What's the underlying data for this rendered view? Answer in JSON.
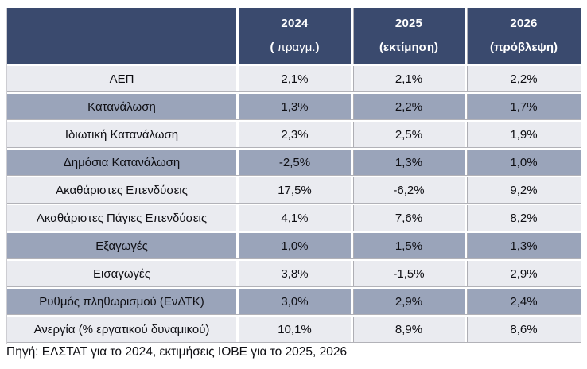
{
  "table": {
    "header": {
      "cols": [
        {
          "year": "2024",
          "sub_open": "( ",
          "sub_word": "πραγμ.",
          "sub_close": ")"
        },
        {
          "year": "2025",
          "sublabel": "(εκτίμηση)"
        },
        {
          "year": "2026",
          "sublabel": "(πρόβλεψη)"
        }
      ]
    },
    "rows": [
      {
        "label": "ΑΕΠ",
        "values": [
          "2,1%",
          "2,1%",
          "2,2%"
        ],
        "shade": "light"
      },
      {
        "label": "Κατανάλωση",
        "values": [
          "1,3%",
          "2,2%",
          "1,7%"
        ],
        "shade": "dark"
      },
      {
        "label": "Ιδιωτική Κατανάλωση",
        "values": [
          "2,3%",
          "2,5%",
          "1,9%"
        ],
        "shade": "light"
      },
      {
        "label": "Δημόσια Κατανάλωση",
        "values": [
          "-2,5%",
          "1,3%",
          "1,0%"
        ],
        "shade": "dark"
      },
      {
        "label": "Ακαθάριστες Επενδύσεις",
        "values": [
          "17,5%",
          "-6,2%",
          "9,2%"
        ],
        "shade": "light"
      },
      {
        "label": "Ακαθάριστες Πάγιες Επενδύσεις",
        "values": [
          "4,1%",
          "7,6%",
          "8,2%"
        ],
        "shade": "light"
      },
      {
        "label": "Εξαγωγές",
        "values": [
          "1,0%",
          "1,5%",
          "1,3%"
        ],
        "shade": "dark"
      },
      {
        "label": "Εισαγωγές",
        "values": [
          "3,8%",
          "-1,5%",
          "2,9%"
        ],
        "shade": "light"
      },
      {
        "label": "Ρυθμός πληθωρισμού (ΕνΔΤΚ)",
        "values": [
          "3,0%",
          "2,9%",
          "2,4%"
        ],
        "shade": "dark"
      },
      {
        "label": "Ανεργία (% εργατικού δυναμικού)",
        "values": [
          "10,1%",
          "8,9%",
          "8,6%"
        ],
        "shade": "light"
      }
    ]
  },
  "footer": {
    "source": "Πηγή: ΕΛΣΤΑΤ για το 2024, εκτιμήσεις ΙΟΒΕ για το 2025, 2026"
  },
  "colors": {
    "header_bg": "#3a4a6e",
    "row_light": "#eaebf0",
    "row_dark": "#9aa4ba",
    "header_text": "#ffffff",
    "body_text": "#0e0e13"
  }
}
